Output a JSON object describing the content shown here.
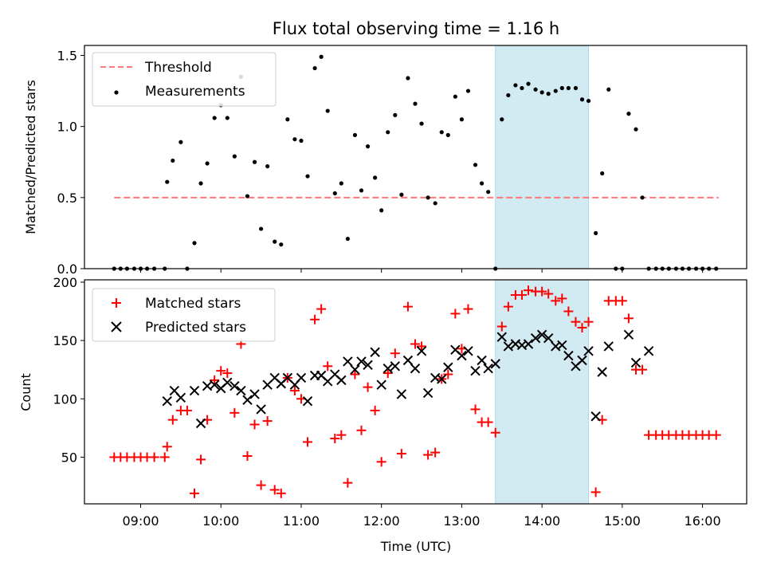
{
  "figure": {
    "title": "Flux total observing time = 1.16 h",
    "shaded_x_range": [
      13.42,
      14.58
    ],
    "shade_color": "#add8e6",
    "x_ticks": [
      "09:00",
      "10:00",
      "11:00",
      "12:00",
      "13:00",
      "14:00",
      "15:00",
      "16:00"
    ],
    "x_tick_hours": [
      9,
      10,
      11,
      12,
      13,
      14,
      15,
      16
    ],
    "xlabel": "Time (UTC)",
    "xlim": [
      8.3,
      16.55
    ]
  },
  "chart_data": [
    {
      "type": "scatter",
      "ylabel": "Matched/Predicted stars",
      "ylim": [
        0,
        1.57
      ],
      "y_ticks": [
        "0.0",
        "0.5",
        "1.0",
        "1.5"
      ],
      "y_tick_values": [
        0,
        0.5,
        1.0,
        1.5
      ],
      "x_tick_labels_shown": false,
      "legend_position": "upper-left",
      "threshold": {
        "name": "Threshold",
        "value": 0.5,
        "x_range": [
          8.67,
          16.2
        ],
        "color": "#ff7777"
      },
      "series": [
        {
          "name": "Measurements",
          "color": "#000000",
          "x": [
            8.67,
            8.75,
            8.83,
            8.92,
            9.0,
            9.08,
            9.17,
            9.3,
            9.33,
            9.4,
            9.5,
            9.58,
            9.67,
            9.75,
            9.83,
            9.92,
            10.0,
            10.08,
            10.17,
            10.25,
            10.33,
            10.42,
            10.5,
            10.58,
            10.67,
            10.75,
            10.83,
            10.92,
            11.0,
            11.08,
            11.17,
            11.25,
            11.33,
            11.42,
            11.5,
            11.58,
            11.67,
            11.75,
            11.83,
            11.92,
            12.0,
            12.08,
            12.17,
            12.25,
            12.33,
            12.42,
            12.5,
            12.58,
            12.67,
            12.75,
            12.83,
            12.92,
            13.0,
            13.08,
            13.17,
            13.25,
            13.33,
            13.42,
            13.5,
            13.58,
            13.67,
            13.75,
            13.83,
            13.92,
            14.0,
            14.08,
            14.17,
            14.25,
            14.33,
            14.42,
            14.5,
            14.58,
            14.67,
            14.75,
            14.83,
            14.92,
            15.0,
            15.08,
            15.17,
            15.25,
            15.33,
            15.42,
            15.5,
            15.58,
            15.67,
            15.75,
            15.83,
            15.92,
            16.0,
            16.08,
            16.17
          ],
          "y": [
            0,
            0,
            0,
            0,
            0,
            0,
            0,
            0,
            0.61,
            0.76,
            0.89,
            0,
            0.18,
            0.6,
            0.74,
            1.06,
            1.15,
            1.06,
            0.79,
            1.35,
            0.51,
            0.75,
            0.28,
            0.72,
            0.19,
            0.17,
            1.05,
            0.91,
            0.9,
            0.65,
            1.41,
            1.49,
            1.11,
            0.53,
            0.6,
            0.21,
            0.94,
            0.55,
            0.86,
            0.64,
            0.41,
            0.96,
            1.08,
            0.52,
            1.34,
            1.16,
            1.02,
            0.5,
            0.46,
            0.96,
            0.94,
            1.21,
            1.05,
            1.25,
            0.73,
            0.6,
            0.54,
            0,
            1.05,
            1.22,
            1.29,
            1.27,
            1.3,
            1.26,
            1.24,
            1.23,
            1.25,
            1.27,
            1.27,
            1.27,
            1.19,
            1.18,
            0.25,
            0.67,
            1.26,
            0,
            0,
            1.09,
            0.98,
            0.5,
            0,
            0,
            0,
            0,
            0,
            0,
            0,
            0,
            0,
            0,
            0
          ]
        }
      ]
    },
    {
      "type": "scatter",
      "ylabel": "Count",
      "ylim": [
        10,
        202
      ],
      "y_ticks": [
        "50",
        "100",
        "150",
        "200"
      ],
      "y_tick_values": [
        50,
        100,
        150,
        200
      ],
      "legend_position": "upper-left",
      "series": [
        {
          "name": "Matched stars",
          "marker": "plus",
          "color": "#ff0000",
          "x": [
            8.67,
            8.75,
            8.83,
            8.92,
            9.0,
            9.08,
            9.17,
            9.3,
            9.33,
            9.4,
            9.5,
            9.58,
            9.67,
            9.75,
            9.83,
            9.92,
            10.0,
            10.08,
            10.17,
            10.25,
            10.33,
            10.42,
            10.5,
            10.58,
            10.67,
            10.75,
            10.83,
            10.92,
            11.0,
            11.08,
            11.17,
            11.25,
            11.33,
            11.42,
            11.5,
            11.58,
            11.67,
            11.75,
            11.83,
            11.92,
            12.0,
            12.08,
            12.17,
            12.25,
            12.33,
            12.42,
            12.5,
            12.58,
            12.67,
            12.75,
            12.83,
            12.92,
            13.0,
            13.08,
            13.17,
            13.25,
            13.33,
            13.42,
            13.5,
            13.58,
            13.67,
            13.75,
            13.83,
            13.92,
            14.0,
            14.08,
            14.17,
            14.25,
            14.33,
            14.42,
            14.5,
            14.58,
            14.67,
            14.75,
            14.83,
            14.92,
            15.0,
            15.08,
            15.17,
            15.25,
            15.33,
            15.42,
            15.5,
            15.58,
            15.67,
            15.75,
            15.83,
            15.92,
            16.0,
            16.08,
            16.17
          ],
          "y": [
            50,
            50,
            50,
            50,
            50,
            50,
            50,
            50,
            59,
            82,
            90,
            90,
            19,
            48,
            82,
            116,
            124,
            122,
            88,
            147,
            51,
            78,
            26,
            81,
            22,
            19,
            118,
            107,
            100,
            63,
            168,
            177,
            128,
            66,
            69,
            28,
            121,
            73,
            110,
            90,
            46,
            122,
            139,
            53,
            179,
            147,
            145,
            52,
            54,
            117,
            121,
            173,
            143,
            177,
            91,
            80,
            80,
            71,
            162,
            179,
            189,
            189,
            193,
            192,
            192,
            190,
            184,
            186,
            175,
            166,
            161,
            166,
            20,
            82,
            184,
            184,
            184,
            169,
            125,
            125,
            69,
            69,
            69,
            69,
            69,
            69,
            69,
            69,
            69,
            69,
            69
          ]
        },
        {
          "name": "Predicted stars",
          "marker": "x",
          "color": "#000000",
          "x": [
            9.33,
            9.42,
            9.5,
            9.67,
            9.75,
            9.83,
            9.92,
            10.0,
            10.08,
            10.17,
            10.25,
            10.33,
            10.42,
            10.5,
            10.58,
            10.67,
            10.75,
            10.83,
            10.92,
            11.0,
            11.08,
            11.17,
            11.25,
            11.33,
            11.42,
            11.5,
            11.58,
            11.67,
            11.75,
            11.83,
            11.92,
            12.0,
            12.08,
            12.17,
            12.25,
            12.33,
            12.42,
            12.5,
            12.58,
            12.67,
            12.75,
            12.83,
            12.92,
            13.0,
            13.08,
            13.17,
            13.25,
            13.33,
            13.42,
            13.5,
            13.58,
            13.67,
            13.75,
            13.83,
            13.92,
            14.0,
            14.08,
            14.17,
            14.25,
            14.33,
            14.42,
            14.5,
            14.58,
            14.67,
            14.75,
            14.83,
            15.08,
            15.17,
            15.33
          ],
          "y": [
            98,
            107,
            101,
            107,
            79,
            111,
            112,
            109,
            114,
            111,
            107,
            99,
            104,
            91,
            112,
            118,
            113,
            118,
            112,
            118,
            98,
            120,
            120,
            115,
            121,
            116,
            132,
            125,
            132,
            129,
            140,
            112,
            126,
            128,
            104,
            133,
            126,
            141,
            105,
            118,
            117,
            127,
            142,
            137,
            141,
            124,
            133,
            126,
            130,
            153,
            145,
            147,
            146,
            147,
            152,
            155,
            152,
            145,
            146,
            137,
            128,
            133,
            141,
            85,
            123,
            145,
            155,
            131,
            141
          ]
        }
      ]
    }
  ]
}
